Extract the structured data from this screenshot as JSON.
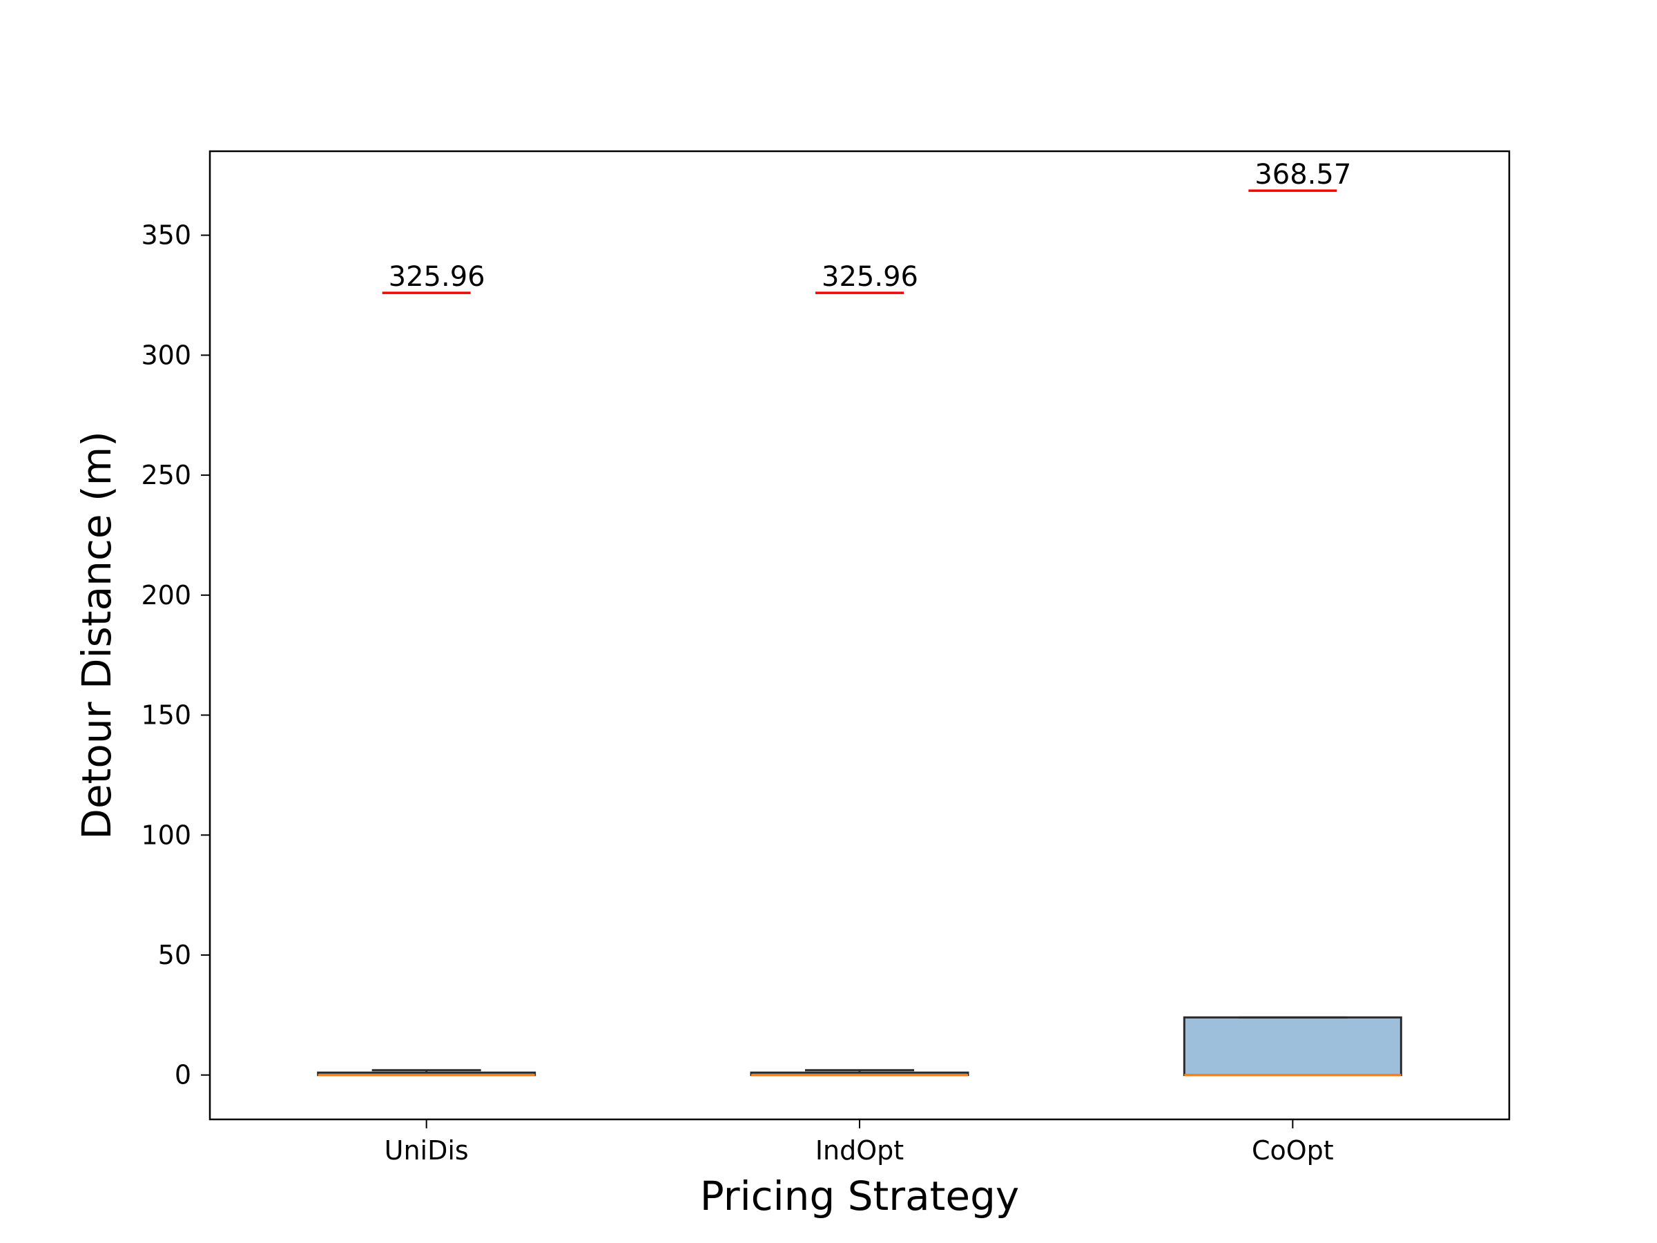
{
  "chart_data": {
    "type": "box",
    "title": "",
    "xlabel": "Pricing Strategy",
    "ylabel": "Detour Distance (m)",
    "ylim": [
      -18.5,
      385
    ],
    "yticks": [
      0,
      50,
      100,
      150,
      200,
      250,
      300,
      350
    ],
    "categories": [
      "UniDis",
      "IndOpt",
      "CoOpt"
    ],
    "boxes": [
      {
        "name": "UniDis",
        "q1": 0,
        "median": 0,
        "q3": 1,
        "whisker_low": 0,
        "whisker_high": 2,
        "max": 325.96,
        "max_label": "325.96"
      },
      {
        "name": "IndOpt",
        "q1": 0,
        "median": 0,
        "q3": 1,
        "whisker_low": 0,
        "whisker_high": 2,
        "max": 325.96,
        "max_label": "325.96"
      },
      {
        "name": "CoOpt",
        "q1": 0,
        "median": 0,
        "q3": 24,
        "whisker_low": 0,
        "whisker_high": 24,
        "max": 368.57,
        "max_label": "368.57"
      }
    ],
    "colors": {
      "box_fill": "#9dbfdb",
      "box_edge": "#2b2b2b",
      "median": "#ff7f0e",
      "max_marker": "#ff0000",
      "axis": "#000000"
    },
    "grid": false
  }
}
